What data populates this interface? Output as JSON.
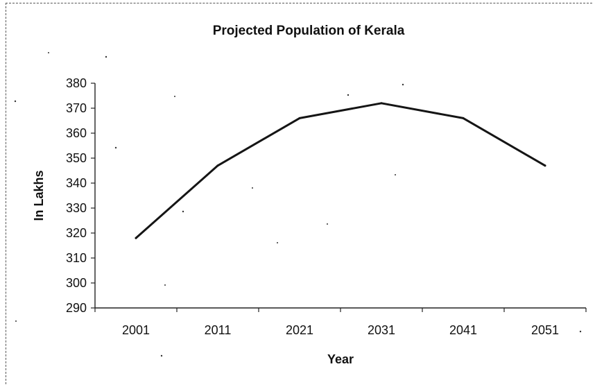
{
  "chart_data": {
    "type": "line",
    "title": "Projected Population of Kerala",
    "xlabel": "Year",
    "ylabel": "In Lakhs",
    "categories": [
      "2001",
      "2011",
      "2021",
      "2031",
      "2041",
      "2051"
    ],
    "series": [
      {
        "values": [
          318,
          347,
          366,
          372,
          366,
          347
        ]
      }
    ],
    "ylim": [
      290,
      380
    ],
    "yticks": [
      "290",
      "300",
      "310",
      "320",
      "330",
      "340",
      "350",
      "360",
      "370",
      "380"
    ],
    "grid": false,
    "legend": "none",
    "line_color": "#151515"
  }
}
